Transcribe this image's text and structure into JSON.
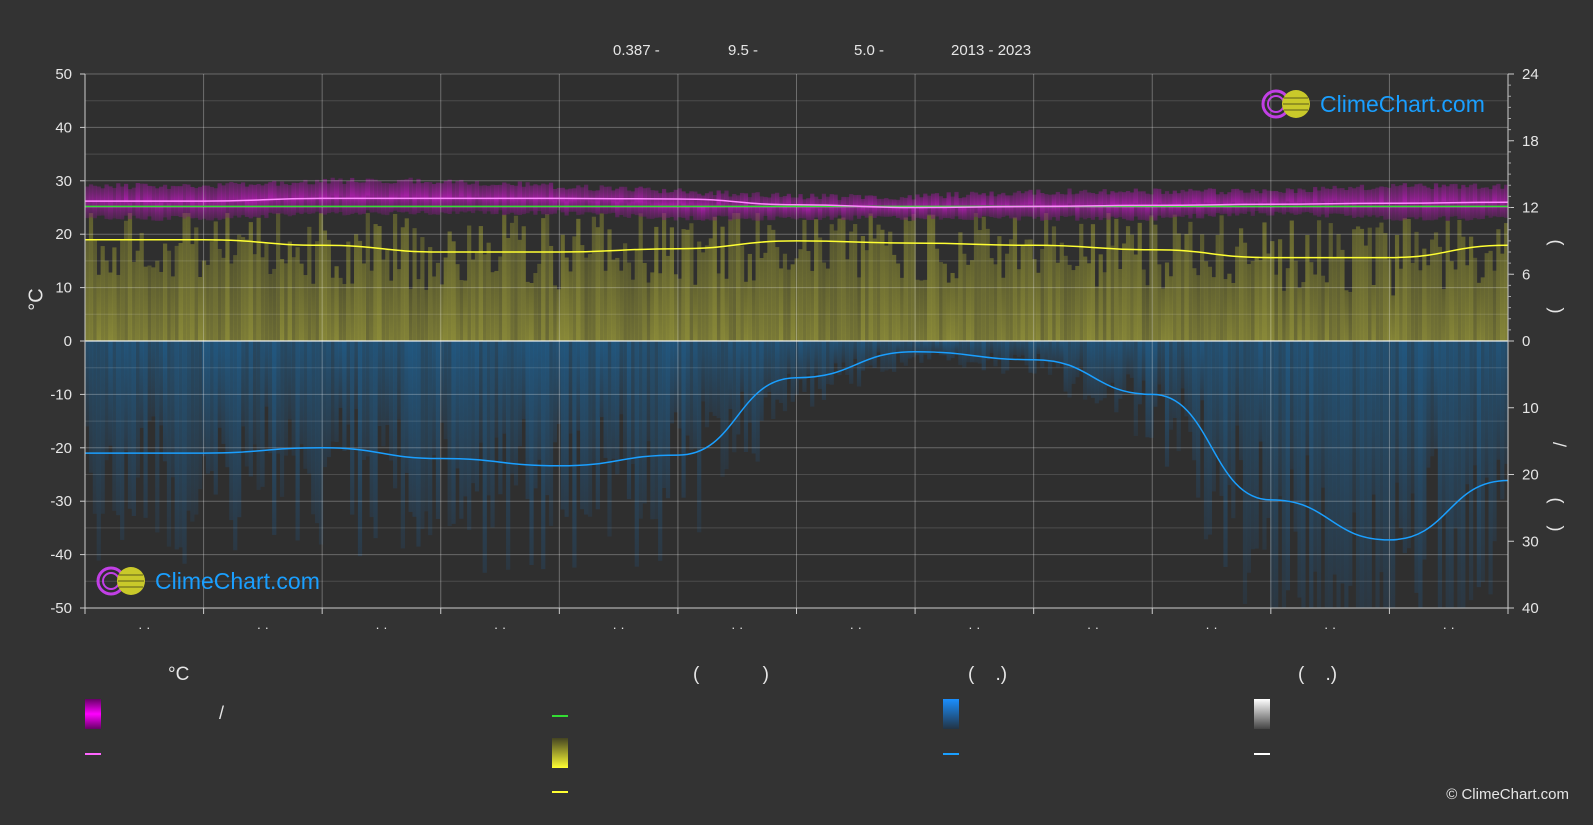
{
  "header": {
    "latitude": "0.387 -",
    "longitude": "9.5 -",
    "elevation": "5.0 -",
    "years": "2013 - 2023"
  },
  "axis_labels": {
    "left_unit": "°C",
    "right_top_paren_open": "(",
    "right_top_paren_close": ")",
    "right_bottom_paren_open": "(",
    "right_bottom_slash": "/",
    "right_bottom_paren_close": ")"
  },
  "legend": {
    "temp_head": "°C",
    "sun_head": "(            )",
    "rain_head": "(    .)",
    "snow_head": "(    .)",
    "temp_range_slash": "/",
    "colors": {
      "temp_range": "#e000e0",
      "temp_mean": "#ff66ff",
      "daylight": "#33dd33",
      "sunshine_bar": "#cccc33",
      "sunshine_line": "#ffff33",
      "rain_bar": "#1a7fd4",
      "rain_line": "#1a9fff",
      "snow_bar": "#ffffff",
      "snow_line": "#ffffff"
    }
  },
  "logo": {
    "text": "ClimeChart.com"
  },
  "copyright": "© ClimeChart.com",
  "chart_data": {
    "type": "line",
    "x_ticks": [
      "· ·",
      "· ·",
      "· ·",
      "· ·",
      "· ·",
      "· ·",
      "· ·",
      "· ·",
      "· ·",
      "· ·",
      "· ·",
      "· ·"
    ],
    "y_left": {
      "ticks": [
        50,
        40,
        30,
        20,
        10,
        0,
        -10,
        -20,
        -30,
        -40,
        -50
      ],
      "range": [
        -50,
        50
      ],
      "label": "°C"
    },
    "y_right_top": {
      "ticks": [
        24,
        18,
        12,
        6,
        0
      ],
      "range": [
        0,
        24
      ]
    },
    "y_right_bottom": {
      "ticks": [
        0,
        10,
        20,
        30,
        40
      ],
      "range": [
        0,
        40
      ]
    },
    "grid": true,
    "series": [
      {
        "key": "temp_max_band",
        "range_top": [
          29,
          29,
          30,
          30,
          29,
          28,
          27,
          27,
          28,
          28,
          28,
          29,
          29
        ],
        "range_bottom": [
          23,
          23,
          24,
          24,
          24,
          23,
          23,
          23,
          23,
          23,
          24,
          23,
          23
        ]
      },
      {
        "key": "temp_mean_line",
        "values": [
          26.2,
          26.2,
          26.7,
          26.7,
          26.7,
          26.6,
          25.5,
          25.0,
          25.2,
          25.4,
          25.6,
          25.8,
          26.0
        ]
      },
      {
        "key": "daylight_line",
        "values": [
          12.1,
          12.1,
          12.1,
          12.1,
          12.1,
          12.1,
          12.1,
          12.1,
          12.1,
          12.1,
          12.1,
          12.1,
          12.1
        ]
      },
      {
        "key": "sunshine_line",
        "values": [
          9.1,
          9.1,
          8.6,
          8.0,
          8.0,
          8.3,
          9.0,
          8.8,
          8.6,
          8.2,
          7.5,
          7.5,
          8.6
        ]
      },
      {
        "key": "rain_line",
        "values": [
          16.8,
          16.8,
          16.0,
          17.6,
          18.7,
          17.1,
          5.5,
          1.6,
          2.8,
          8.0,
          23.8,
          29.8,
          20.9
        ]
      }
    ]
  }
}
